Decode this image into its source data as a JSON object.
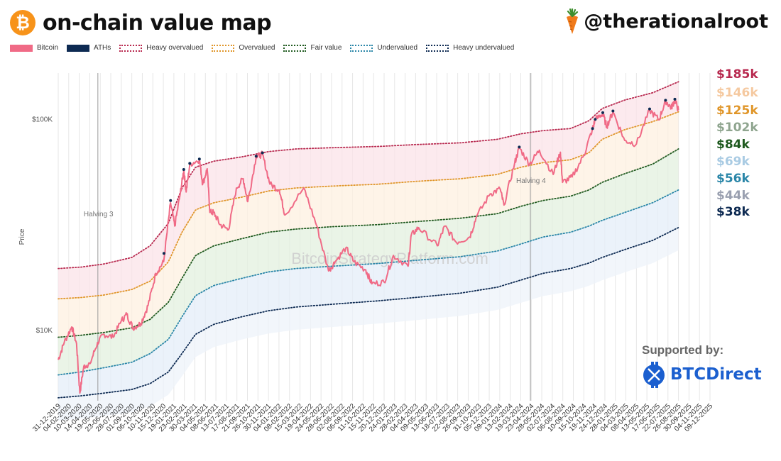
{
  "header": {
    "title": "on-chain value map",
    "handle": "@therationalroot",
    "logo_symbol": "₿",
    "mascot_icon": "carrot-icon"
  },
  "legend": [
    {
      "label": "Bitcoin",
      "style": "solid",
      "color": "#f06a86"
    },
    {
      "label": "ATHs",
      "style": "solid",
      "color": "#0d2a52"
    },
    {
      "label": "Heavy overvalued",
      "style": "dotted",
      "color": "#b8294f"
    },
    {
      "label": "Overvalued",
      "style": "dotted",
      "color": "#e0962a"
    },
    {
      "label": "Fair value",
      "style": "dotted",
      "color": "#1f5a1f"
    },
    {
      "label": "Undervalued",
      "style": "dotted",
      "color": "#2a86a8"
    },
    {
      "label": "Heavy undervalued",
      "style": "dotted",
      "color": "#0d2a52"
    }
  ],
  "sponsor": {
    "supported_by": "Supported by:",
    "brand": "BTCDirect",
    "brand_icon": "btc-direct-logo-icon"
  },
  "chart_data": {
    "type": "line",
    "ylabel": "Price",
    "yscale": "log",
    "yticks": [
      {
        "value": 10000,
        "label": "$10K"
      },
      {
        "value": 100000,
        "label": "$100K"
      }
    ],
    "ylim": [
      4600,
      165000
    ],
    "xlim": [
      "2019-12-31",
      "2025-12-09"
    ],
    "watermark": "BitcoinStrategyPlatform.com",
    "xticks": [
      "31-12-2019",
      "04-02-2020",
      "10-03-2020",
      "14-04-2020",
      "19-05-2020",
      "23-06-2020",
      "28-07-2020",
      "01-09-2020",
      "06-10-2020",
      "10-11-2020",
      "15-12-2020",
      "19-01-2021",
      "23-02-2021",
      "30-03-2021",
      "04-05-2021",
      "08-06-2021",
      "13-07-2021",
      "17-08-2021",
      "21-09-2021",
      "26-10-2021",
      "30-11-2021",
      "04-01-2022",
      "08-02-2022",
      "15-03-2022",
      "19-04-2022",
      "24-05-2022",
      "28-06-2022",
      "02-08-2022",
      "06-09-2022",
      "11-10-2022",
      "15-11-2022",
      "20-12-2022",
      "24-01-2023",
      "28-02-2023",
      "04-04-2023",
      "09-05-2023",
      "13-06-2023",
      "18-07-2023",
      "22-08-2023",
      "26-09-2023",
      "31-10-2023",
      "05-12-2023",
      "09-01-2024",
      "13-02-2024",
      "19-03-2024",
      "23-04-2024",
      "28-05-2024",
      "02-07-2024",
      "06-08-2024",
      "10-09-2024",
      "15-10-2024",
      "19-11-2024",
      "24-12-2024",
      "28-01-2025",
      "04-03-2025",
      "08-04-2025",
      "13-05-2025",
      "17-06-2025",
      "22-07-2025",
      "26-08-2025",
      "30-09-2025",
      "04-11-2025",
      "09-12-2025"
    ],
    "events": [
      {
        "label": "Halving 3",
        "date": "2020-05-11"
      },
      {
        "label": "Halving 4",
        "date": "2024-04-20"
      }
    ],
    "bands": [
      {
        "name": "Heavy overvalued",
        "color": "#b8294f",
        "fill": "#fbe3e8",
        "points": [
          [
            "2019-12-31",
            19500
          ],
          [
            "2020-03-15",
            19800
          ],
          [
            "2020-06-01",
            20500
          ],
          [
            "2020-09-01",
            22000
          ],
          [
            "2020-11-01",
            25000
          ],
          [
            "2021-01-01",
            32000
          ],
          [
            "2021-02-15",
            47000
          ],
          [
            "2021-04-01",
            59000
          ],
          [
            "2021-06-01",
            63000
          ],
          [
            "2021-09-01",
            66000
          ],
          [
            "2021-12-01",
            70000
          ],
          [
            "2022-03-01",
            72000
          ],
          [
            "2022-07-01",
            73000
          ],
          [
            "2022-12-01",
            74000
          ],
          [
            "2023-04-01",
            75500
          ],
          [
            "2023-09-01",
            77000
          ],
          [
            "2024-01-01",
            80000
          ],
          [
            "2024-03-20",
            85000
          ],
          [
            "2024-06-01",
            88000
          ],
          [
            "2024-09-01",
            90000
          ],
          [
            "2024-11-01",
            98000
          ],
          [
            "2024-12-15",
            112000
          ],
          [
            "2025-03-01",
            123000
          ],
          [
            "2025-06-01",
            133000
          ],
          [
            "2025-08-26",
            150000
          ]
        ]
      },
      {
        "name": "Overvalued",
        "color": "#e0962a",
        "fill": "#fdf0e0",
        "points": [
          [
            "2019-12-31",
            14000
          ],
          [
            "2020-03-15",
            14200
          ],
          [
            "2020-06-01",
            14600
          ],
          [
            "2020-09-01",
            15500
          ],
          [
            "2020-11-01",
            17000
          ],
          [
            "2021-01-01",
            21000
          ],
          [
            "2021-02-15",
            29000
          ],
          [
            "2021-04-01",
            37000
          ],
          [
            "2021-06-01",
            40000
          ],
          [
            "2021-09-01",
            42500
          ],
          [
            "2021-12-01",
            45500
          ],
          [
            "2022-03-01",
            47000
          ],
          [
            "2022-07-01",
            48000
          ],
          [
            "2022-12-01",
            49000
          ],
          [
            "2023-04-01",
            50500
          ],
          [
            "2023-09-01",
            52000
          ],
          [
            "2024-01-01",
            54500
          ],
          [
            "2024-03-20",
            59000
          ],
          [
            "2024-06-01",
            62000
          ],
          [
            "2024-09-01",
            64000
          ],
          [
            "2024-11-01",
            69000
          ],
          [
            "2024-12-15",
            80000
          ],
          [
            "2025-03-01",
            89000
          ],
          [
            "2025-06-01",
            97000
          ],
          [
            "2025-08-26",
            108000
          ]
        ]
      },
      {
        "name": "Fair value",
        "color": "#1f5a1f",
        "fill": "#e3f0df",
        "points": [
          [
            "2019-12-31",
            9200
          ],
          [
            "2020-03-15",
            9400
          ],
          [
            "2020-06-01",
            9700
          ],
          [
            "2020-09-01",
            10200
          ],
          [
            "2020-11-01",
            11200
          ],
          [
            "2021-01-01",
            13500
          ],
          [
            "2021-02-15",
            17500
          ],
          [
            "2021-04-01",
            22500
          ],
          [
            "2021-06-01",
            25000
          ],
          [
            "2021-09-01",
            27000
          ],
          [
            "2021-12-01",
            29000
          ],
          [
            "2022-03-01",
            30000
          ],
          [
            "2022-07-01",
            30800
          ],
          [
            "2022-12-01",
            31500
          ],
          [
            "2023-04-01",
            32500
          ],
          [
            "2023-09-01",
            33800
          ],
          [
            "2024-01-01",
            35500
          ],
          [
            "2024-03-20",
            38500
          ],
          [
            "2024-06-01",
            41000
          ],
          [
            "2024-09-01",
            43000
          ],
          [
            "2024-11-01",
            46000
          ],
          [
            "2024-12-15",
            50000
          ],
          [
            "2025-03-01",
            55000
          ],
          [
            "2025-06-01",
            61000
          ],
          [
            "2025-08-26",
            72000
          ]
        ]
      },
      {
        "name": "Undervalued",
        "color": "#2a86a8",
        "fill": "#e4eef8",
        "points": [
          [
            "2019-12-31",
            6100
          ],
          [
            "2020-03-15",
            6300
          ],
          [
            "2020-06-01",
            6600
          ],
          [
            "2020-09-01",
            7000
          ],
          [
            "2020-11-01",
            7700
          ],
          [
            "2021-01-01",
            9000
          ],
          [
            "2021-02-15",
            11500
          ],
          [
            "2021-04-01",
            14500
          ],
          [
            "2021-06-01",
            16200
          ],
          [
            "2021-09-01",
            17500
          ],
          [
            "2021-12-01",
            18800
          ],
          [
            "2022-03-01",
            19500
          ],
          [
            "2022-07-01",
            20000
          ],
          [
            "2022-12-01",
            20600
          ],
          [
            "2023-04-01",
            21300
          ],
          [
            "2023-09-01",
            22200
          ],
          [
            "2024-01-01",
            23600
          ],
          [
            "2024-03-20",
            25500
          ],
          [
            "2024-06-01",
            27500
          ],
          [
            "2024-09-01",
            29000
          ],
          [
            "2024-11-01",
            31000
          ],
          [
            "2024-12-15",
            33000
          ],
          [
            "2025-03-01",
            36000
          ],
          [
            "2025-06-01",
            40000
          ],
          [
            "2025-08-26",
            46000
          ]
        ]
      },
      {
        "name": "Heavy undervalued",
        "color": "#0d2a52",
        "fill": "#eef3fa",
        "points": [
          [
            "2019-12-31",
            4750
          ],
          [
            "2020-03-15",
            4850
          ],
          [
            "2020-06-01",
            5000
          ],
          [
            "2020-09-01",
            5200
          ],
          [
            "2020-11-01",
            5550
          ],
          [
            "2021-01-01",
            6300
          ],
          [
            "2021-02-15",
            7700
          ],
          [
            "2021-04-01",
            9500
          ],
          [
            "2021-06-01",
            10600
          ],
          [
            "2021-09-01",
            11500
          ],
          [
            "2021-12-01",
            12300
          ],
          [
            "2022-03-01",
            12800
          ],
          [
            "2022-07-01",
            13200
          ],
          [
            "2022-12-01",
            13700
          ],
          [
            "2023-04-01",
            14200
          ],
          [
            "2023-09-01",
            14900
          ],
          [
            "2024-01-01",
            15900
          ],
          [
            "2024-03-20",
            17200
          ],
          [
            "2024-06-01",
            18500
          ],
          [
            "2024-09-01",
            19500
          ],
          [
            "2024-11-01",
            20700
          ],
          [
            "2024-12-15",
            22000
          ],
          [
            "2025-03-01",
            24000
          ],
          [
            "2025-06-01",
            26500
          ],
          [
            "2025-08-26",
            30500
          ]
        ]
      }
    ],
    "band_labels": [
      {
        "label": "$185k",
        "color": "#b8294f"
      },
      {
        "label": "$146k",
        "color": "#f5c9a0"
      },
      {
        "label": "$125k",
        "color": "#e0962a"
      },
      {
        "label": "$102k",
        "color": "#8fa58f"
      },
      {
        "label": "$84k",
        "color": "#1f5a1f"
      },
      {
        "label": "$69k",
        "color": "#a9cbe3"
      },
      {
        "label": "$56k",
        "color": "#2a86a8"
      },
      {
        "label": "$44k",
        "color": "#9aa0b0"
      },
      {
        "label": "$38k",
        "color": "#0d2a52"
      }
    ],
    "series": [
      {
        "name": "Bitcoin",
        "color": "#f06a86",
        "points": [
          [
            "2019-12-31",
            7200
          ],
          [
            "2020-01-20",
            8700
          ],
          [
            "2020-02-14",
            10300
          ],
          [
            "2020-03-01",
            8600
          ],
          [
            "2020-03-12",
            5000
          ],
          [
            "2020-03-25",
            6700
          ],
          [
            "2020-04-15",
            6900
          ],
          [
            "2020-05-10",
            8700
          ],
          [
            "2020-06-01",
            9500
          ],
          [
            "2020-07-01",
            9200
          ],
          [
            "2020-07-28",
            11000
          ],
          [
            "2020-08-15",
            11800
          ],
          [
            "2020-09-05",
            10200
          ],
          [
            "2020-10-01",
            10700
          ],
          [
            "2020-10-25",
            13000
          ],
          [
            "2020-11-20",
            18500
          ],
          [
            "2020-12-16",
            21000
          ],
          [
            "2021-01-08",
            40000
          ],
          [
            "2021-01-22",
            31000
          ],
          [
            "2021-02-10",
            45000
          ],
          [
            "2021-02-21",
            57000
          ],
          [
            "2021-03-01",
            45000
          ],
          [
            "2021-03-13",
            61000
          ],
          [
            "2021-04-14",
            64000
          ],
          [
            "2021-04-25",
            49000
          ],
          [
            "2021-05-10",
            58000
          ],
          [
            "2021-05-19",
            36000
          ],
          [
            "2021-06-01",
            36000
          ],
          [
            "2021-06-22",
            31500
          ],
          [
            "2021-07-20",
            29800
          ],
          [
            "2021-08-15",
            47000
          ],
          [
            "2021-09-07",
            52000
          ],
          [
            "2021-09-22",
            40500
          ],
          [
            "2021-10-20",
            66000
          ],
          [
            "2021-11-10",
            68000
          ],
          [
            "2021-12-05",
            49000
          ],
          [
            "2022-01-05",
            46000
          ],
          [
            "2022-01-24",
            35000
          ],
          [
            "2022-03-28",
            47000
          ],
          [
            "2022-05-10",
            31000
          ],
          [
            "2022-06-18",
            19000
          ],
          [
            "2022-07-10",
            21000
          ],
          [
            "2022-08-15",
            24500
          ],
          [
            "2022-09-10",
            21000
          ],
          [
            "2022-10-20",
            19200
          ],
          [
            "2022-11-09",
            16500
          ],
          [
            "2022-12-20",
            16800
          ],
          [
            "2023-01-20",
            22500
          ],
          [
            "2023-03-10",
            20000
          ],
          [
            "2023-03-20",
            28000
          ],
          [
            "2023-04-14",
            30500
          ],
          [
            "2023-06-15",
            25000
          ],
          [
            "2023-07-10",
            31000
          ],
          [
            "2023-08-17",
            26000
          ],
          [
            "2023-10-01",
            27500
          ],
          [
            "2023-10-24",
            34500
          ],
          [
            "2023-12-08",
            44000
          ],
          [
            "2024-01-10",
            46500
          ],
          [
            "2024-01-23",
            39000
          ],
          [
            "2024-02-28",
            62000
          ],
          [
            "2024-03-14",
            73000
          ],
          [
            "2024-04-17",
            61000
          ],
          [
            "2024-05-20",
            71000
          ],
          [
            "2024-07-05",
            54500
          ],
          [
            "2024-07-29",
            69500
          ],
          [
            "2024-08-05",
            50000
          ],
          [
            "2024-09-06",
            53000
          ],
          [
            "2024-10-15",
            67000
          ],
          [
            "2024-11-12",
            89000
          ],
          [
            "2024-11-22",
            99000
          ],
          [
            "2024-12-17",
            106000
          ],
          [
            "2024-12-30",
            92000
          ],
          [
            "2025-01-20",
            108000
          ],
          [
            "2025-02-28",
            79000
          ],
          [
            "2025-04-08",
            76000
          ],
          [
            "2025-05-22",
            110000
          ],
          [
            "2025-06-22",
            99000
          ],
          [
            "2025-07-14",
            122000
          ],
          [
            "2025-08-02",
            113000
          ],
          [
            "2025-08-14",
            123000
          ],
          [
            "2025-08-26",
            110000
          ]
        ]
      }
    ],
    "aths": [
      [
        "2020-12-17",
        23000
      ],
      [
        "2021-01-08",
        41000
      ],
      [
        "2021-02-21",
        57500
      ],
      [
        "2021-03-13",
        61500
      ],
      [
        "2021-04-14",
        64500
      ],
      [
        "2021-10-20",
        66500
      ],
      [
        "2021-11-10",
        69000
      ],
      [
        "2024-03-14",
        73500
      ],
      [
        "2024-11-13",
        90000
      ],
      [
        "2024-11-22",
        99500
      ],
      [
        "2024-12-17",
        107000
      ],
      [
        "2025-01-20",
        109000
      ],
      [
        "2025-05-22",
        111500
      ],
      [
        "2025-07-14",
        122500
      ],
      [
        "2025-08-14",
        124000
      ]
    ]
  }
}
